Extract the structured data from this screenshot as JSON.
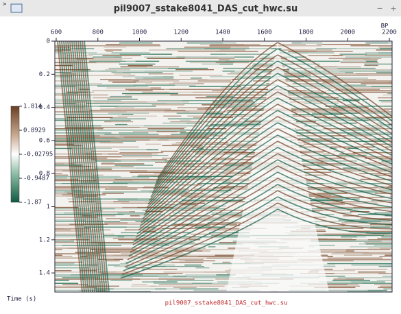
{
  "window": {
    "title": "pil9007_sstake8041_DAS_cut_hwc.su",
    "controls": [
      "−",
      "+"
    ]
  },
  "plot": {
    "x_ticks": [
      "600",
      "800",
      "1000",
      "1200",
      "1400",
      "1600",
      "1800",
      "2000",
      "2200"
    ],
    "x_unit": "BP",
    "y_ticks": [
      "0",
      "0.2",
      "0.4",
      "0.6",
      "0.8",
      "1",
      "1.2",
      "1.4"
    ],
    "y_label": "Time (s)",
    "colorbar": [
      "1.814",
      "0.8929",
      "-0.02795",
      "-0.9487",
      "-1.87"
    ],
    "caption": "pil9007_sstake8041_DAS_cut_hwc.su"
  }
}
